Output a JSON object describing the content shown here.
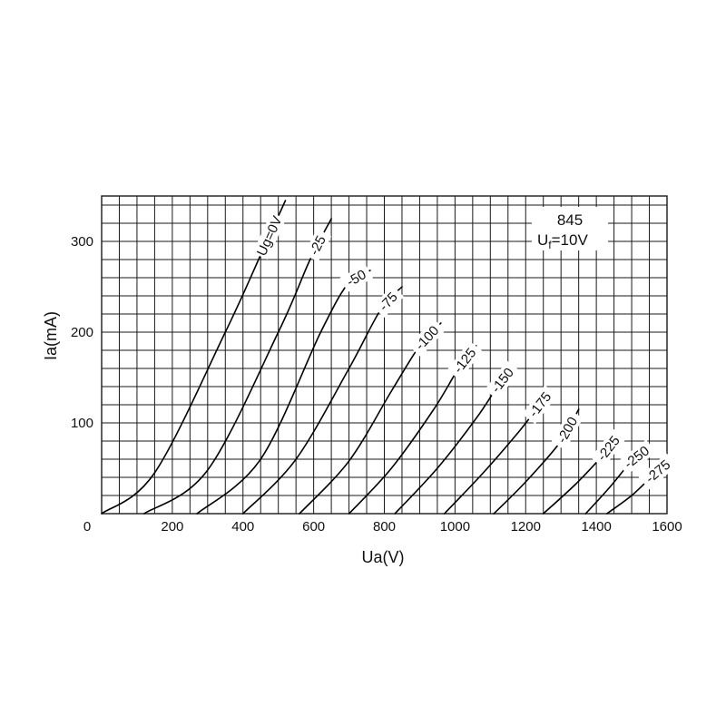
{
  "chart_data": {
    "type": "line",
    "xlabel": "Ua(V)",
    "ylabel": "Ia(mA)",
    "xlim": [
      0,
      1600
    ],
    "ylim": [
      0,
      350
    ],
    "x_ticks": [
      "0",
      "200",
      "400",
      "600",
      "800",
      "1000",
      "1200",
      "1400",
      "1600"
    ],
    "y_ticks": [
      "100",
      "200",
      "300"
    ],
    "tube_type": "845",
    "filament_symbol": "U",
    "filament_subscript": "f",
    "filament_value": "=10V",
    "grid": true,
    "series": [
      {
        "name": "Ug=0V",
        "x": [
          0,
          150,
          350,
          450,
          520
        ],
        "y": [
          0,
          45,
          200,
          285,
          345
        ]
      },
      {
        "name": "-25",
        "x": [
          120,
          300,
          500,
          590,
          650
        ],
        "y": [
          0,
          48,
          200,
          280,
          325
        ]
      },
      {
        "name": "-50",
        "x": [
          270,
          450,
          620,
          700,
          760
        ],
        "y": [
          0,
          60,
          200,
          255,
          268
        ]
      },
      {
        "name": "-75",
        "x": [
          400,
          550,
          700,
          790,
          850
        ],
        "y": [
          0,
          60,
          160,
          225,
          250
        ]
      },
      {
        "name": "-100",
        "x": [
          560,
          700,
          820,
          900,
          960
        ],
        "y": [
          0,
          58,
          135,
          185,
          210
        ]
      },
      {
        "name": "-125",
        "x": [
          700,
          820,
          940,
          1010,
          1060
        ],
        "y": [
          0,
          50,
          115,
          160,
          185
        ]
      },
      {
        "name": "-150",
        "x": [
          830,
          950,
          1060,
          1120,
          1160
        ],
        "y": [
          0,
          50,
          105,
          140,
          160
        ]
      },
      {
        "name": "-175",
        "x": [
          970,
          1080,
          1180,
          1230,
          1260
        ],
        "y": [
          0,
          45,
          90,
          115,
          130
        ]
      },
      {
        "name": "-200",
        "x": [
          1110,
          1200,
          1300,
          1350
        ],
        "y": [
          0,
          35,
          80,
          115
        ]
      },
      {
        "name": "-225",
        "x": [
          1250,
          1340,
          1420,
          1460
        ],
        "y": [
          0,
          32,
          65,
          85
        ]
      },
      {
        "name": "-250",
        "x": [
          1370,
          1440,
          1500,
          1540
        ],
        "y": [
          0,
          30,
          58,
          70
        ]
      },
      {
        "name": "-275",
        "x": [
          1430,
          1500,
          1560,
          1600
        ],
        "y": [
          0,
          20,
          42,
          55
        ]
      }
    ]
  }
}
